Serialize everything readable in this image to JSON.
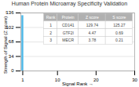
{
  "chart_data": {
    "type": "bar",
    "title": "Human Protein Microarray Specificity Validation",
    "xlabel": "Signal Rank",
    "ylabel": "Strength of Signal (Z score)",
    "x": [
      1
    ],
    "values": [
      129.74
    ],
    "color": "#4db8e8",
    "xlim": [
      0.5,
      30
    ],
    "xticks": [
      1,
      10,
      20,
      30
    ],
    "ylim": [
      0,
      136
    ],
    "yticks": [
      0,
      34,
      68,
      102,
      136
    ],
    "grid": true,
    "annotations": [
      [
        "Rank",
        "Protein",
        "Z score",
        "S score"
      ],
      [
        "1",
        "CD141",
        "129.74",
        "125.27"
      ],
      [
        "2",
        "GTF2I",
        "4.47",
        "0.69"
      ],
      [
        "3",
        "MECR",
        "3.78",
        "0.21"
      ]
    ]
  }
}
